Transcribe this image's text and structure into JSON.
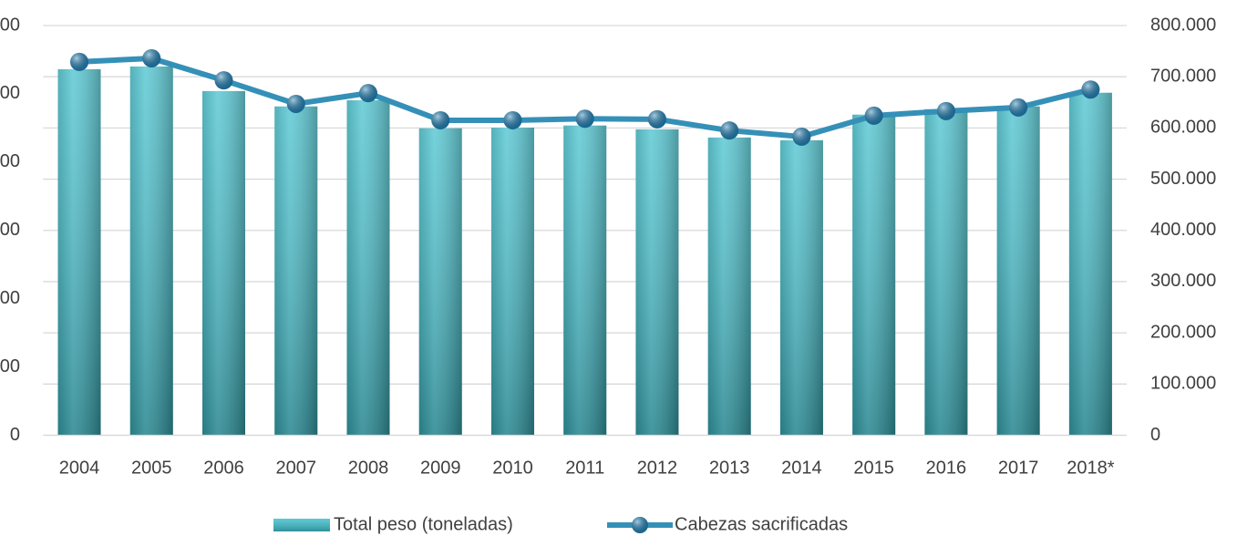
{
  "chart_data": {
    "type": "bar_line",
    "categories": [
      "2004",
      "2005",
      "2006",
      "2007",
      "2008",
      "2009",
      "2010",
      "2011",
      "2012",
      "2013",
      "2014",
      "2015",
      "2016",
      "2017",
      "2018*"
    ],
    "series": [
      {
        "name": "Total peso (toneladas)",
        "type": "bar",
        "color": "#3fbfcc",
        "values": [
          107200,
          108000,
          100800,
          96300,
          98100,
          89900,
          90100,
          90700,
          89600,
          87200,
          86400,
          93900,
          95500,
          96300,
          100300
        ]
      },
      {
        "name": "Cabezas sacrificadas",
        "type": "line",
        "axis": "y2",
        "color": "#3590b8",
        "marker_color": "#1f7fb5",
        "values": [
          729000,
          736000,
          693000,
          647000,
          668000,
          615000,
          615000,
          618000,
          617000,
          595000,
          583000,
          624000,
          633000,
          640000,
          675000
        ]
      }
    ],
    "ylim": [
      0,
      120000
    ],
    "yticks": [
      0,
      {
        "value": 20000,
        "label": "00"
      },
      {
        "value": 40000,
        "label": "00"
      },
      {
        "value": 60000,
        "label": "00"
      },
      {
        "value": 80000,
        "label": "00"
      },
      {
        "value": 100000,
        "label": "00"
      },
      {
        "value": 120000,
        "label": "00"
      }
    ],
    "y2lim": [
      0,
      800000
    ],
    "y2ticks": [
      0,
      {
        "value": 100000,
        "label": "100.000"
      },
      {
        "value": 200000,
        "label": "200.000"
      },
      {
        "value": 300000,
        "label": "300.000"
      },
      {
        "value": 400000,
        "label": "400.000"
      },
      {
        "value": 500000,
        "label": "500.000"
      },
      {
        "value": 600000,
        "label": "600.000"
      },
      {
        "value": 700000,
        "label": "700.000"
      },
      {
        "value": 800000,
        "label": "800.000"
      }
    ],
    "grid": true,
    "legend": "bottom"
  }
}
